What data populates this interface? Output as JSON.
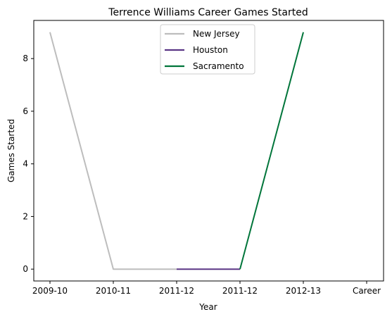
{
  "chart_data": {
    "type": "line",
    "title": "Terrence Williams Career Games Started",
    "xlabel": "Year",
    "ylabel": "Games Started",
    "categories": [
      "2009-10",
      "2010-11",
      "2011-12",
      "2011-12",
      "2012-13",
      "Career"
    ],
    "ylim": [
      -0.45,
      9.45
    ],
    "yticks": [
      0,
      2,
      4,
      6,
      8
    ],
    "grid": false,
    "legend_position": "top-center",
    "series": [
      {
        "name": "New Jersey",
        "color": "#bdbdbd",
        "points": [
          [
            0,
            9
          ],
          [
            1.0,
            0
          ],
          [
            2.0,
            0
          ]
        ]
      },
      {
        "name": "Houston",
        "color": "#5a3585",
        "points": [
          [
            2.0,
            0
          ],
          [
            3.0,
            0
          ]
        ]
      },
      {
        "name": "Sacramento",
        "color": "#00753a",
        "points": [
          [
            3.0,
            0
          ],
          [
            4.0,
            9
          ]
        ]
      }
    ]
  }
}
